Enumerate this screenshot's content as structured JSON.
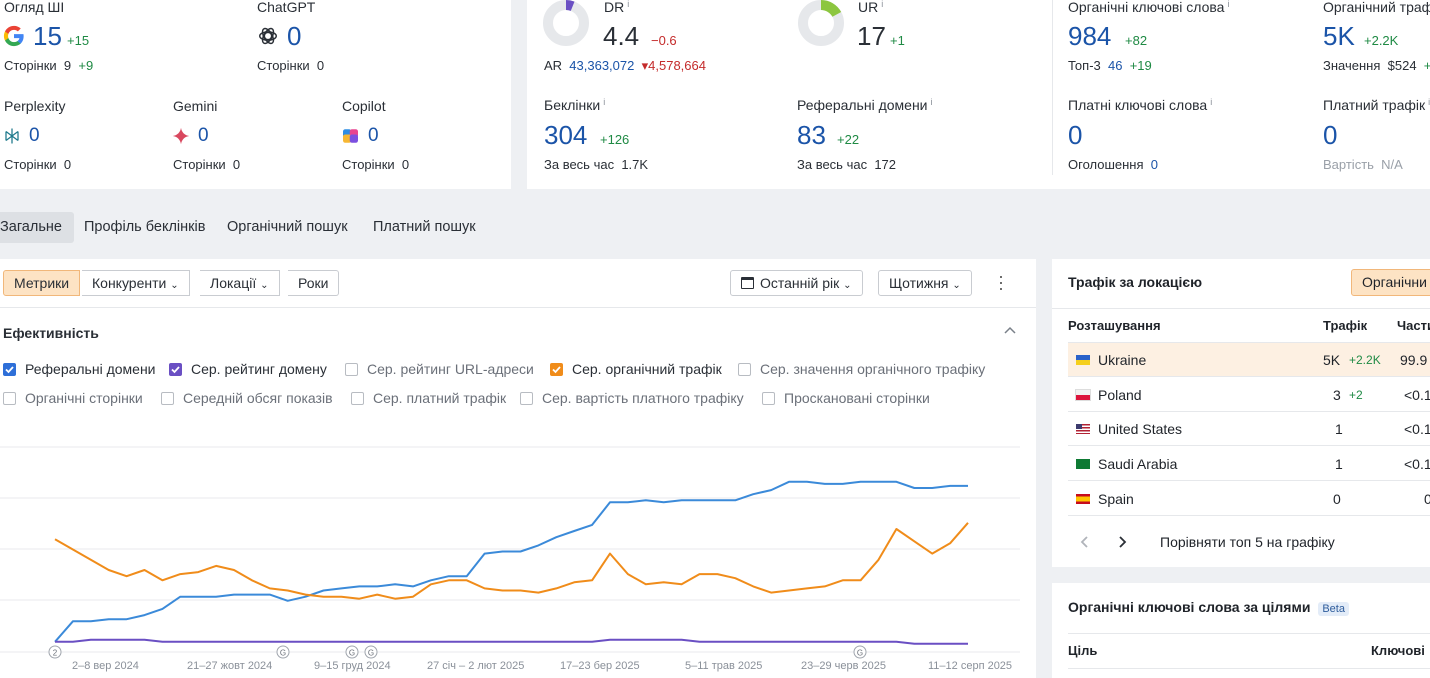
{
  "ai": {
    "overview": {
      "label": "Огляд ШІ",
      "value": "15",
      "delta": "+15",
      "sub_label": "Сторінки",
      "sub_value": "9",
      "sub_delta": "+9"
    },
    "chatgpt": {
      "label": "ChatGPT",
      "value": "0",
      "sub_label": "Сторінки",
      "sub_value": "0"
    },
    "perplexity": {
      "label": "Perplexity",
      "value": "0",
      "sub_label": "Сторінки",
      "sub_value": "0"
    },
    "gemini": {
      "label": "Gemini",
      "value": "0",
      "sub_label": "Сторінки",
      "sub_value": "0"
    },
    "copilot": {
      "label": "Copilot",
      "value": "0",
      "sub_label": "Сторінки",
      "sub_value": "0"
    }
  },
  "ratings": {
    "dr": {
      "label": "DR",
      "value": "4.4",
      "delta": "−0.6",
      "ar_label": "AR",
      "ar_value": "43,363,072",
      "ar_delta": "4,578,664",
      "fill": 0.044
    },
    "ur": {
      "label": "UR",
      "value": "17",
      "delta": "+1",
      "fill": 0.17
    },
    "backlinks": {
      "label": "Беклінки",
      "value": "304",
      "delta": "+126",
      "sub_label": "За весь час",
      "sub_value": "1.7K"
    },
    "ref_domains": {
      "label": "Реферальні домени",
      "value": "83",
      "delta": "+22",
      "sub_label": "За весь час",
      "sub_value": "172"
    }
  },
  "organic": {
    "keywords": {
      "label": "Органічні ключові слова",
      "value": "984",
      "delta": "+82",
      "sub_label": "Топ-3",
      "sub_value": "46",
      "sub_delta": "+19"
    },
    "traffic": {
      "label": "Органічний траф",
      "value": "5K",
      "delta": "+2.2K",
      "sub_label": "Значення",
      "sub_value": "$524",
      "sub_delta": "+"
    },
    "paid_keywords": {
      "label": "Платні ключові слова",
      "value": "0",
      "sub_label": "Оголошення",
      "sub_value": "0"
    },
    "paid_traffic": {
      "label": "Платний трафік",
      "value": "0",
      "sub_label": "Вартість",
      "sub_value": "N/A"
    }
  },
  "tabs": [
    "Загальне",
    "Профіль беклінків",
    "Органічний пошук",
    "Платний пошук"
  ],
  "toolbar": {
    "seg": [
      "Метрики",
      "Конкуренти",
      "Локації",
      "Роки"
    ],
    "period": "Останній рік",
    "interval": "Щотижня"
  },
  "performance": {
    "title": "Ефективність",
    "checks": [
      {
        "label": "Реферальні домени",
        "on": true,
        "color": "#2e6fd8"
      },
      {
        "label": "Сер. рейтинг домену",
        "on": true,
        "color": "#6a4fc3"
      },
      {
        "label": "Сер. рейтинг URL-адреси",
        "on": false
      },
      {
        "label": "Сер. органічний трафік",
        "on": true,
        "color": "#f08c1a"
      },
      {
        "label": "Сер. значення органічного трафіку",
        "on": false
      },
      {
        "label": "Органічні сторінки",
        "on": false
      },
      {
        "label": "Середній обсяг показів",
        "on": false
      },
      {
        "label": "Сер. платний трафік",
        "on": false
      },
      {
        "label": "Сер. вартість платного трафіку",
        "on": false
      },
      {
        "label": "Проскановані сторінки",
        "on": false
      }
    ]
  },
  "chart_data": {
    "type": "line",
    "x_labels": [
      "2–8 вер 2024",
      "21–27 жовт 2024",
      "9–15 груд 2024",
      "27 січ – 2 лют 2025",
      "17–23 бер 2025",
      "5–11 трав 2025",
      "23–29 черв 2025",
      "11–12 серп 2025"
    ],
    "annotations": [
      "2",
      "G",
      "G",
      "G",
      "G"
    ],
    "series": [
      {
        "name": "Реферальні домени",
        "color": "#3b8ad9",
        "values": [
          5,
          15,
          15,
          16,
          16,
          18,
          21,
          27,
          27,
          27,
          28,
          28,
          28,
          25,
          27,
          30,
          31,
          32,
          32,
          33,
          32,
          35,
          37,
          37,
          48,
          49,
          49,
          52,
          56,
          59,
          62,
          73,
          73,
          74,
          73,
          74,
          74,
          74,
          74,
          77,
          79,
          83,
          83,
          82,
          82,
          83,
          83,
          83,
          80,
          80,
          81,
          81
        ]
      },
      {
        "name": "Сер. рейтинг домену",
        "color": "#6a4fc3",
        "values": [
          5,
          5,
          6,
          6,
          6,
          6,
          5,
          5,
          5,
          5,
          5,
          5,
          5,
          5,
          5,
          5,
          5,
          5,
          5,
          5,
          5,
          5,
          5,
          5,
          5,
          5,
          5,
          5,
          5,
          5,
          5,
          6,
          6,
          6,
          6,
          6,
          5,
          5,
          5,
          5,
          5,
          5,
          5,
          5,
          5,
          5,
          5,
          5,
          4,
          4,
          4,
          4
        ]
      },
      {
        "name": "Сер. органічний трафік",
        "color": "#f08c1a",
        "values": [
          55,
          50,
          45,
          40,
          37,
          40,
          35,
          38,
          39,
          42,
          40,
          35,
          31,
          30,
          28,
          27,
          27,
          26,
          28,
          26,
          27,
          33,
          35,
          35,
          31,
          30,
          30,
          29,
          31,
          34,
          35,
          48,
          38,
          33,
          34,
          33,
          38,
          38,
          36,
          32,
          29,
          30,
          31,
          32,
          35,
          35,
          45,
          60,
          54,
          48,
          53,
          63
        ]
      }
    ]
  },
  "locations": {
    "title": "Трафік за локацією",
    "filter": "Органічни",
    "cols": [
      "Розташування",
      "Трафік",
      "Части"
    ],
    "rows": [
      {
        "country": "Ukraine",
        "traffic": "5K",
        "delta": "+2.2K",
        "share": "99.9"
      },
      {
        "country": "Poland",
        "traffic": "3",
        "delta": "+2",
        "share": "<0.1"
      },
      {
        "country": "United States",
        "traffic": "1",
        "delta": "",
        "share": "<0.1"
      },
      {
        "country": "Saudi Arabia",
        "traffic": "1",
        "delta": "",
        "share": "<0.1"
      },
      {
        "country": "Spain",
        "traffic": "0",
        "delta": "",
        "share": "0"
      }
    ],
    "compare": "Порівняти топ 5 на графіку"
  },
  "goals": {
    "title": "Органічні ключові слова за цілями",
    "badge": "Beta",
    "col1": "Ціль",
    "col2": "Ключові"
  }
}
